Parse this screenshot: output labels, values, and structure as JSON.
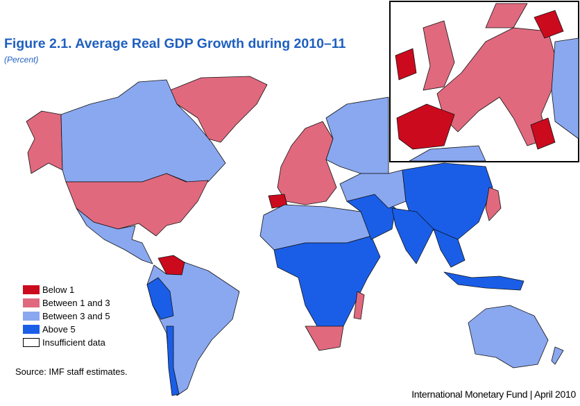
{
  "title": "Figure 2.1.  Average Real GDP Growth during 2010–11",
  "subtitle": "(Percent)",
  "colors": {
    "below_1": "#cc0a1e",
    "between_1_3": "#e0697e",
    "between_3_5": "#8aa8f0",
    "above_5": "#1a5ee8",
    "insufficient": "#ffffff"
  },
  "legend": [
    {
      "label": "Below 1",
      "color": "#cc0a1e"
    },
    {
      "label": "Between 1 and 3",
      "color": "#e0697e"
    },
    {
      "label": "Between 3 and 5",
      "color": "#8aa8f0"
    },
    {
      "label": "Above 5",
      "color": "#1a5ee8"
    },
    {
      "label": "Insufficient data",
      "color": "#ffffff"
    }
  ],
  "source": "Source: IMF staff estimates.",
  "footer": "International Monetary Fund | April 2010"
}
